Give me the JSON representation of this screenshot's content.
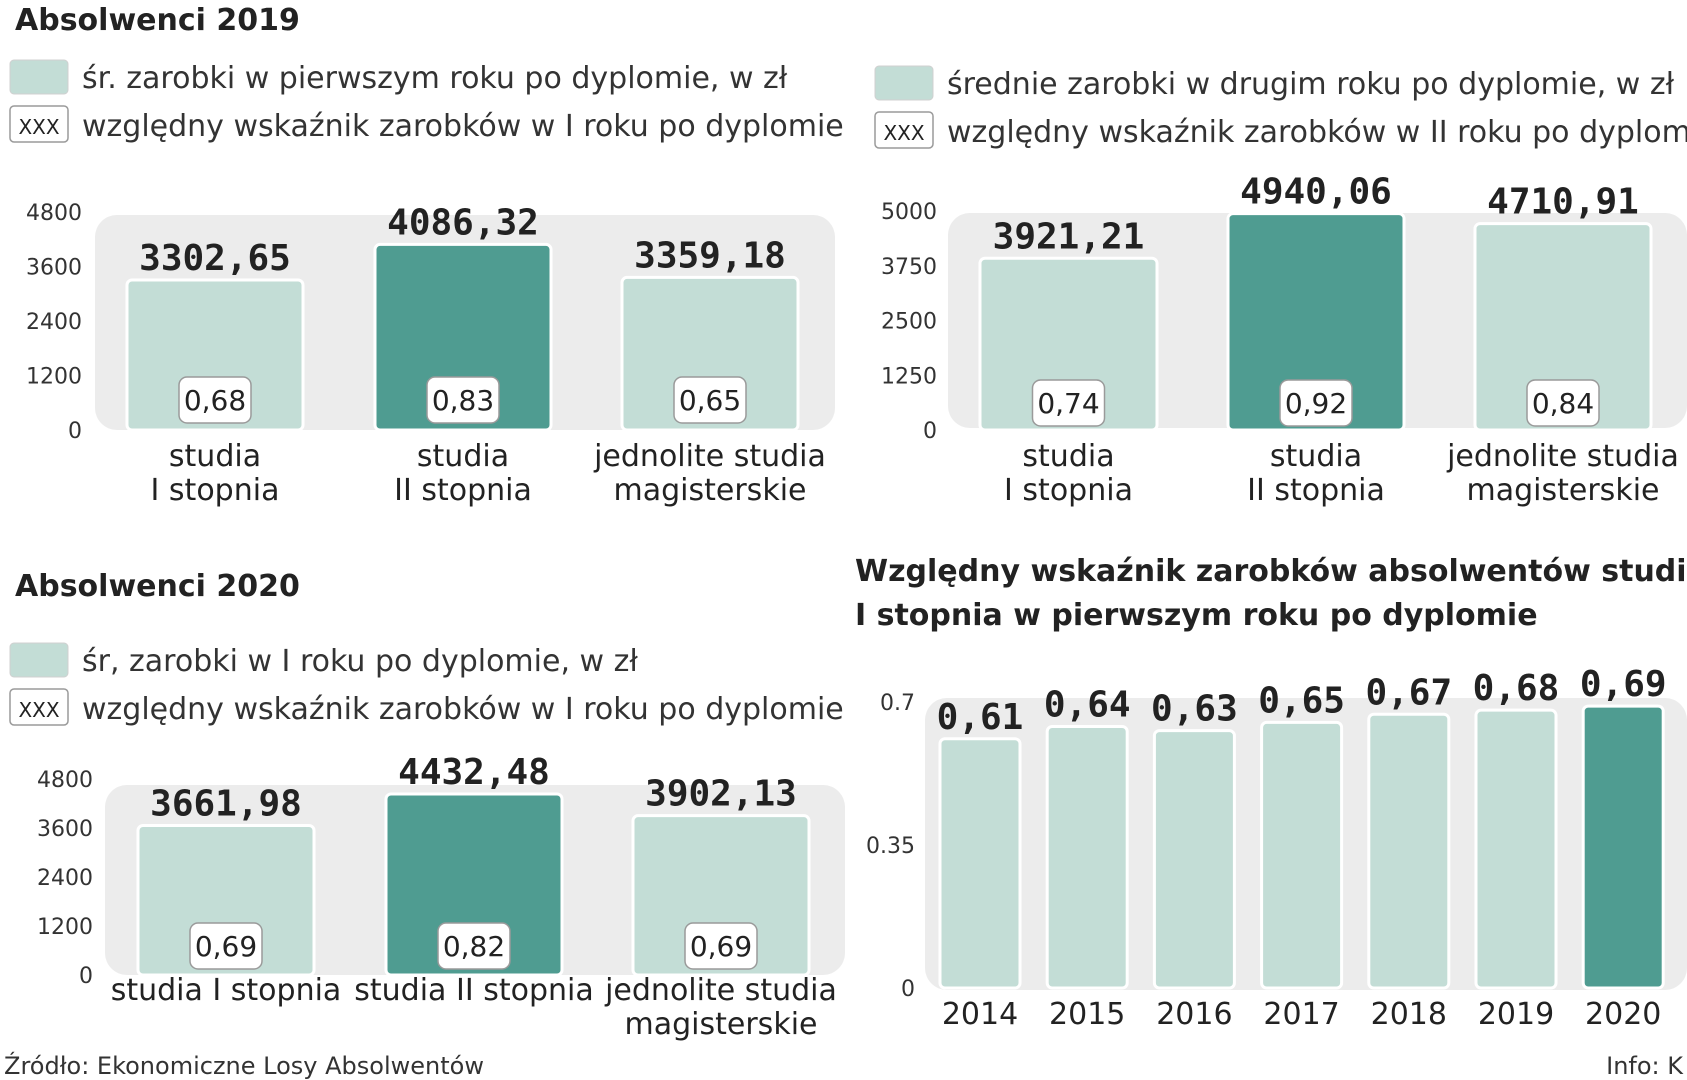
{
  "colors": {
    "light": "#c3ddd6",
    "dark": "#4f9c91",
    "bg_panel": "#ececec"
  },
  "chart_data": [
    {
      "type": "bar",
      "title": "Absolwenci 2019",
      "legend": [
        "śr. zarobki w pierwszym roku po dyplomie, w zł",
        "względny wskaźnik zarobków w I roku po dyplomie"
      ],
      "legend_box_label": "XXX",
      "categories": [
        [
          "studia",
          "I stopnia"
        ],
        [
          "studia",
          "II stopnia"
        ],
        [
          "jednolite studia",
          "magisterskie"
        ]
      ],
      "values": [
        3302.65,
        4086.32,
        3359.18
      ],
      "value_labels": [
        "3302,65",
        "4086,32",
        "3359,18"
      ],
      "ratios": [
        "0,68",
        "0,83",
        "0,65"
      ],
      "highlight_index": 1,
      "yticks": [
        "0",
        "1200",
        "2400",
        "3600",
        "4800"
      ],
      "ylim": [
        0,
        4800
      ]
    },
    {
      "type": "bar",
      "title": "",
      "legend": [
        "średnie zarobki w drugim roku po dyplomie, w zł",
        "względny wskaźnik zarobków w II roku po dyplomie"
      ],
      "legend_box_label": "XXX",
      "categories": [
        [
          "studia",
          "I stopnia"
        ],
        [
          "studia",
          "II stopnia"
        ],
        [
          "jednolite studia",
          "magisterskie"
        ]
      ],
      "values": [
        3921.21,
        4940.06,
        4710.91
      ],
      "value_labels": [
        "3921,21",
        "4940,06",
        "4710,91"
      ],
      "ratios": [
        "0,74",
        "0,92",
        "0,84"
      ],
      "highlight_index": 1,
      "yticks": [
        "0",
        "1250",
        "2500",
        "3750",
        "5000"
      ],
      "ylim": [
        0,
        5000
      ]
    },
    {
      "type": "bar",
      "title": "Absolwenci 2020",
      "legend": [
        "śr, zarobki w I roku po dyplomie, w zł",
        "względny wskaźnik zarobków w I roku po dyplomie"
      ],
      "legend_box_label": "XXX",
      "categories": [
        [
          "studia I stopnia"
        ],
        [
          "studia II stopnia"
        ],
        [
          "jednolite studia",
          "magisterskie"
        ]
      ],
      "values": [
        3661.98,
        4432.48,
        3902.13
      ],
      "value_labels": [
        "3661,98",
        "4432,48",
        "3902,13"
      ],
      "ratios": [
        "0,69",
        "0,82",
        "0,69"
      ],
      "highlight_index": 1,
      "yticks": [
        "0",
        "1200",
        "2400",
        "3600",
        "4800"
      ],
      "ylim": [
        0,
        4800
      ]
    },
    {
      "type": "bar",
      "title": [
        "Względny wskaźnik zarobków absolwentów studiów",
        "I stopnia w  pierwszym roku po dyplomie"
      ],
      "categories": [
        "2014",
        "2015",
        "2016",
        "2017",
        "2018",
        "2019",
        "2020"
      ],
      "values": [
        0.61,
        0.64,
        0.63,
        0.65,
        0.67,
        0.68,
        0.69
      ],
      "value_labels": [
        "0,61",
        "0,64",
        "0,63",
        "0,65",
        "0,67",
        "0,68",
        "0,69"
      ],
      "highlight_index": 6,
      "yticks": [
        "0",
        "0.35",
        "0.7"
      ],
      "ylim": [
        0,
        0.7
      ]
    }
  ],
  "footer": {
    "source": "Źródło: Ekonomiczne Losy Absolwentów",
    "credit": "Info: K"
  }
}
